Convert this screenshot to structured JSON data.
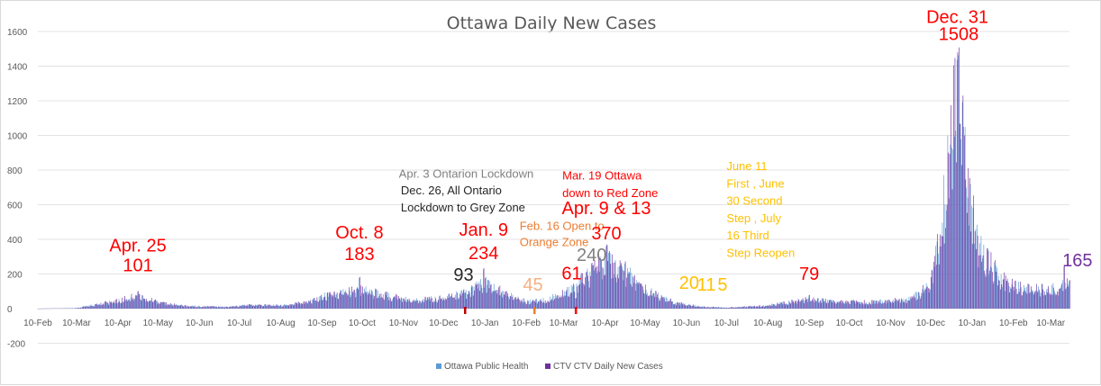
{
  "chart_data": {
    "type": "bar",
    "title": "Ottawa Daily New Cases",
    "ylim": [
      -200,
      1600
    ],
    "y_ticks": [
      1600,
      1400,
      1200,
      1000,
      800,
      600,
      400,
      200,
      0,
      -200
    ],
    "x_start": "2020-02-10",
    "x_end": "2022-03-24",
    "x_tick_labels": [
      "10-Feb",
      "10-Mar",
      "10-Apr",
      "10-May",
      "10-Jun",
      "10-Jul",
      "10-Aug",
      "10-Sep",
      "10-Oct",
      "10-Nov",
      "10-Dec",
      "10-Jan",
      "10-Feb",
      "10-Mar",
      "10-Apr",
      "10-May",
      "10-Jun",
      "10-Jul",
      "10-Aug",
      "10-Sep",
      "10-Oct",
      "10-Nov",
      "10-Dec",
      "10-Jan",
      "10-Feb",
      "10-Mar"
    ],
    "grid": true,
    "legend_position": "bottom",
    "series": [
      {
        "name": "Ottawa Public Health",
        "color": "#5b9bd5"
      },
      {
        "name": "CTV CTV Daily New Cases",
        "color": "#7030a0"
      }
    ],
    "trend": [
      {
        "x": "2020-02-10",
        "y": 0
      },
      {
        "x": "2020-03-10",
        "y": 3
      },
      {
        "x": "2020-03-25",
        "y": 25
      },
      {
        "x": "2020-04-10",
        "y": 45
      },
      {
        "x": "2020-04-25",
        "y": 80
      },
      {
        "x": "2020-05-10",
        "y": 35
      },
      {
        "x": "2020-06-01",
        "y": 15
      },
      {
        "x": "2020-07-01",
        "y": 10
      },
      {
        "x": "2020-07-20",
        "y": 22
      },
      {
        "x": "2020-08-10",
        "y": 18
      },
      {
        "x": "2020-09-01",
        "y": 40
      },
      {
        "x": "2020-09-15",
        "y": 80
      },
      {
        "x": "2020-10-08",
        "y": 110
      },
      {
        "x": "2020-11-01",
        "y": 70
      },
      {
        "x": "2020-11-20",
        "y": 50
      },
      {
        "x": "2020-12-10",
        "y": 60
      },
      {
        "x": "2020-12-26",
        "y": 90
      },
      {
        "x": "2021-01-09",
        "y": 150
      },
      {
        "x": "2021-01-25",
        "y": 90
      },
      {
        "x": "2021-02-10",
        "y": 40
      },
      {
        "x": "2021-02-25",
        "y": 50
      },
      {
        "x": "2021-03-10",
        "y": 90
      },
      {
        "x": "2021-03-25",
        "y": 170
      },
      {
        "x": "2021-04-11",
        "y": 290
      },
      {
        "x": "2021-04-25",
        "y": 210
      },
      {
        "x": "2021-05-10",
        "y": 110
      },
      {
        "x": "2021-06-01",
        "y": 35
      },
      {
        "x": "2021-06-20",
        "y": 12
      },
      {
        "x": "2021-07-10",
        "y": 6
      },
      {
        "x": "2021-08-10",
        "y": 18
      },
      {
        "x": "2021-09-01",
        "y": 45
      },
      {
        "x": "2021-09-10",
        "y": 55
      },
      {
        "x": "2021-10-01",
        "y": 38
      },
      {
        "x": "2021-11-01",
        "y": 40
      },
      {
        "x": "2021-11-25",
        "y": 55
      },
      {
        "x": "2021-12-10",
        "y": 140
      },
      {
        "x": "2021-12-18",
        "y": 450
      },
      {
        "x": "2021-12-24",
        "y": 900
      },
      {
        "x": "2021-12-31",
        "y": 1380
      },
      {
        "x": "2022-01-06",
        "y": 700
      },
      {
        "x": "2022-01-15",
        "y": 350
      },
      {
        "x": "2022-02-01",
        "y": 170
      },
      {
        "x": "2022-02-15",
        "y": 120
      },
      {
        "x": "2022-03-10",
        "y": 110
      },
      {
        "x": "2022-03-24",
        "y": 140
      }
    ],
    "peaks": [
      {
        "x": "2020-04-25",
        "y": 101
      },
      {
        "x": "2020-10-08",
        "y": 183
      },
      {
        "x": "2020-12-26",
        "y": 93
      },
      {
        "x": "2021-01-09",
        "y": 234
      },
      {
        "x": "2021-02-16",
        "y": 45
      },
      {
        "x": "2021-03-19",
        "y": 61
      },
      {
        "x": "2021-04-03",
        "y": 240
      },
      {
        "x": "2021-04-11",
        "y": 370
      },
      {
        "x": "2021-06-11",
        "y": 20
      },
      {
        "x": "2021-06-30",
        "y": 11
      },
      {
        "x": "2021-07-16",
        "y": 5
      },
      {
        "x": "2021-09-10",
        "y": 79
      },
      {
        "x": "2021-12-30",
        "y": 1480
      },
      {
        "x": "2021-12-31",
        "y": 1508
      },
      {
        "x": "2022-01-03",
        "y": 1230
      },
      {
        "x": "2022-03-20",
        "y": 250
      },
      {
        "x": "2022-03-24",
        "y": 165
      }
    ],
    "markers": [
      {
        "x": "2020-12-26",
        "color": "#c00000"
      },
      {
        "x": "2021-02-16",
        "color": "#ed7d31"
      },
      {
        "x": "2021-03-19",
        "color": "#ff0000"
      }
    ],
    "annotations": [
      {
        "text": "Apr. 25",
        "color": "#ff0000",
        "size": 20,
        "anchor": "middle",
        "x": "2020-04-25",
        "y": 330
      },
      {
        "text": "101",
        "color": "#ff0000",
        "size": 20,
        "anchor": "middle",
        "x": "2020-04-25",
        "y": 215
      },
      {
        "text": "Oct. 8",
        "color": "#ff0000",
        "size": 20,
        "anchor": "middle",
        "x": "2020-10-08",
        "y": 405
      },
      {
        "text": "183",
        "color": "#ff0000",
        "size": 20,
        "anchor": "middle",
        "x": "2020-10-08",
        "y": 280
      },
      {
        "text": "93",
        "color": "#262626",
        "size": 20,
        "anchor": "middle",
        "x": "2020-12-25",
        "y": 160
      },
      {
        "text": "Jan. 9",
        "color": "#ff0000",
        "size": 20,
        "anchor": "middle",
        "x": "2021-01-09",
        "y": 420
      },
      {
        "text": "234",
        "color": "#ff0000",
        "size": 20,
        "anchor": "middle",
        "x": "2021-01-09",
        "y": 285
      },
      {
        "text": "Apr. 3 Ontarion Lockdown",
        "color": "#808080",
        "size": 13,
        "anchor": "middle",
        "x": "2020-12-27",
        "y": 755
      },
      {
        "text": "Dec. 26, All Ontario",
        "color": "#262626",
        "size": 13,
        "anchor": "start",
        "x": "2020-11-08",
        "y": 660
      },
      {
        "text": "Lockdown to Grey Zone",
        "color": "#262626",
        "size": 13,
        "anchor": "start",
        "x": "2020-11-08",
        "y": 560
      },
      {
        "text": "Mar. 19 Ottawa",
        "color": "#ff0000",
        "size": 13,
        "anchor": "start",
        "x": "2021-03-09",
        "y": 745
      },
      {
        "text": "down to Red Zone",
        "color": "#ff0000",
        "size": 13,
        "anchor": "start",
        "x": "2021-03-09",
        "y": 645
      },
      {
        "text": "Feb. 16 Open to",
        "color": "#ed7d31",
        "size": 13,
        "anchor": "start",
        "x": "2021-02-05",
        "y": 455
      },
      {
        "text": "Orange Zone",
        "color": "#ed7d31",
        "size": 13,
        "anchor": "start",
        "x": "2021-02-05",
        "y": 360
      },
      {
        "text": "Apr. 9 & 13",
        "color": "#ff0000",
        "size": 20,
        "anchor": "middle",
        "x": "2021-04-11",
        "y": 545
      },
      {
        "text": "370",
        "color": "#ff0000",
        "size": 20,
        "anchor": "middle",
        "x": "2021-04-11",
        "y": 400
      },
      {
        "text": "240",
        "color": "#808080",
        "size": 20,
        "anchor": "middle",
        "x": "2021-03-31",
        "y": 275
      },
      {
        "text": "45",
        "color": "#f4b183",
        "size": 20,
        "anchor": "middle",
        "x": "2021-02-15",
        "y": 105
      },
      {
        "text": "61",
        "color": "#ff0000",
        "size": 20,
        "anchor": "middle",
        "x": "2021-03-16",
        "y": 170
      },
      {
        "text": "June 11",
        "color": "#ffc000",
        "size": 13,
        "anchor": "start",
        "x": "2021-07-10",
        "y": 800
      },
      {
        "text": "First , June",
        "color": "#ffc000",
        "size": 13,
        "anchor": "start",
        "x": "2021-07-10",
        "y": 700
      },
      {
        "text": "30 Second",
        "color": "#ffc000",
        "size": 13,
        "anchor": "start",
        "x": "2021-07-10",
        "y": 600
      },
      {
        "text": "Step , July",
        "color": "#ffc000",
        "size": 13,
        "anchor": "start",
        "x": "2021-07-10",
        "y": 500
      },
      {
        "text": "16 Third",
        "color": "#ffc000",
        "size": 13,
        "anchor": "start",
        "x": "2021-07-10",
        "y": 400
      },
      {
        "text": "Step Reopen",
        "color": "#ffc000",
        "size": 13,
        "anchor": "start",
        "x": "2021-07-10",
        "y": 300
      },
      {
        "text": "20",
        "color": "#ffc000",
        "size": 20,
        "anchor": "middle",
        "x": "2021-06-12",
        "y": 115
      },
      {
        "text": "11",
        "color": "#ffc000",
        "size": 20,
        "anchor": "middle",
        "x": "2021-06-25",
        "y": 105
      },
      {
        "text": "5",
        "color": "#ffc000",
        "size": 20,
        "anchor": "middle",
        "x": "2021-07-07",
        "y": 105
      },
      {
        "text": "79",
        "color": "#ff0000",
        "size": 20,
        "anchor": "middle",
        "x": "2021-09-10",
        "y": 165
      },
      {
        "text": "Dec. 31",
        "color": "#ff0000",
        "size": 20,
        "anchor": "middle",
        "x": "2021-12-30",
        "y": 1650
      },
      {
        "text": "1508",
        "color": "#ff0000",
        "size": 20,
        "anchor": "middle",
        "x": "2021-12-31",
        "y": 1550
      },
      {
        "text": "165",
        "color": "#7030a0",
        "size": 20,
        "anchor": "middle",
        "x": "2022-03-30",
        "y": 245
      }
    ]
  }
}
